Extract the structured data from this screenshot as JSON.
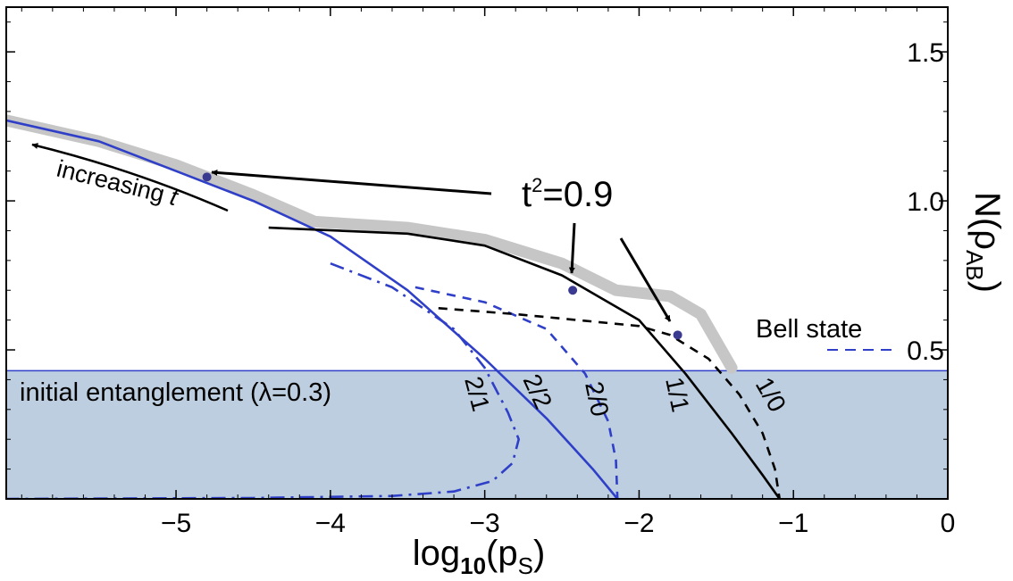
{
  "chart_data": {
    "type": "line",
    "xlabel_parts": {
      "base": "log",
      "sub1": "10",
      "open": "(p",
      "sub2": "S",
      "close": ")"
    },
    "ylabel_parts": {
      "base": "N(ρ",
      "sub": "AB",
      "close": ")"
    },
    "xlim": [
      -6.1,
      0
    ],
    "ylim": [
      0,
      1.65
    ],
    "x_ticks": [
      -5,
      -4,
      -3,
      -2,
      -1,
      0
    ],
    "x_tick_labels": [
      "−5",
      "−4",
      "−3",
      "−2",
      "−1",
      "0"
    ],
    "y_ticks": [
      0.5,
      1.0,
      1.5
    ],
    "y_tick_labels": [
      "0.5",
      "1.0",
      "1.5"
    ],
    "grid": false,
    "region": {
      "label": "initial entanglement (λ=0.3)",
      "y_top": 0.43,
      "color": "#bccedf"
    },
    "envelope": {
      "color": "#c6c6c6",
      "points": [
        [
          -6.1,
          1.27
        ],
        [
          -5.5,
          1.2
        ],
        [
          -5.0,
          1.12
        ],
        [
          -4.5,
          1.02
        ],
        [
          -4.1,
          0.93
        ],
        [
          -3.5,
          0.91
        ],
        [
          -3.0,
          0.87
        ],
        [
          -2.5,
          0.79
        ],
        [
          -2.15,
          0.7
        ],
        [
          -1.8,
          0.68
        ],
        [
          -1.6,
          0.62
        ],
        [
          -1.4,
          0.44
        ]
      ]
    },
    "series": [
      {
        "name": "2/1",
        "color": "#2f3fc7",
        "dash": "dashdot",
        "points": [
          [
            -4.0,
            0.79
          ],
          [
            -3.6,
            0.71
          ],
          [
            -3.2,
            0.57
          ],
          [
            -3.0,
            0.44
          ],
          [
            -2.85,
            0.29
          ],
          [
            -2.78,
            0.2
          ],
          [
            -2.82,
            0.12
          ],
          [
            -2.95,
            0.06
          ],
          [
            -3.2,
            0.025
          ],
          [
            -3.6,
            0.01
          ],
          [
            -4.5,
            0.003
          ],
          [
            -6.1,
            0.0
          ]
        ]
      },
      {
        "name": "2/2",
        "color": "#2f3fc7",
        "dash": "solid",
        "points": [
          [
            -6.1,
            1.27
          ],
          [
            -5.5,
            1.2
          ],
          [
            -5.0,
            1.1
          ],
          [
            -4.5,
            1.0
          ],
          [
            -4.0,
            0.88
          ],
          [
            -3.5,
            0.7
          ],
          [
            -3.0,
            0.47
          ],
          [
            -2.6,
            0.27
          ],
          [
            -2.3,
            0.1
          ],
          [
            -2.14,
            0.0
          ]
        ]
      },
      {
        "name": "2/0",
        "color": "#2f3fc7",
        "dash": "dashed",
        "points": [
          [
            -3.45,
            0.71
          ],
          [
            -3.0,
            0.66
          ],
          [
            -2.6,
            0.57
          ],
          [
            -2.35,
            0.42
          ],
          [
            -2.2,
            0.26
          ],
          [
            -2.15,
            0.13
          ],
          [
            -2.14,
            0.0
          ]
        ]
      },
      {
        "name": "1/1",
        "color": "#000000",
        "dash": "solid",
        "points": [
          [
            -4.4,
            0.91
          ],
          [
            -3.5,
            0.89
          ],
          [
            -3.0,
            0.85
          ],
          [
            -2.5,
            0.75
          ],
          [
            -2.0,
            0.6
          ],
          [
            -1.7,
            0.42
          ],
          [
            -1.4,
            0.22
          ],
          [
            -1.2,
            0.08
          ],
          [
            -1.09,
            0.0
          ]
        ]
      },
      {
        "name": "1/0",
        "color": "#000000",
        "dash": "dashed",
        "points": [
          [
            -3.3,
            0.64
          ],
          [
            -2.8,
            0.62
          ],
          [
            -2.4,
            0.6
          ],
          [
            -2.0,
            0.58
          ],
          [
            -1.8,
            0.55
          ],
          [
            -1.55,
            0.47
          ],
          [
            -1.35,
            0.35
          ],
          [
            -1.2,
            0.22
          ],
          [
            -1.12,
            0.1
          ],
          [
            -1.09,
            0.0
          ]
        ]
      }
    ],
    "markers": [
      {
        "label": "t²=0.9 point on 2/2",
        "x": -4.8,
        "y": 1.08
      },
      {
        "label": "t²=0.9 point on 1/1",
        "x": -2.43,
        "y": 0.7
      },
      {
        "label": "t²=0.9 point on 1/0",
        "x": -1.75,
        "y": 0.55
      }
    ],
    "curve_labels": [
      "2/1",
      "2/2",
      "2/0",
      "1/1",
      "1/0"
    ],
    "annotations": {
      "t2_base": "t",
      "t2_sup": "2",
      "t2_rest": "=0.9",
      "increasing_prefix": "increasing ",
      "increasing_var": "t"
    },
    "legend": {
      "label": "Bell state",
      "color": "#2f3fc7",
      "dash": "dashed",
      "position": "right"
    }
  }
}
